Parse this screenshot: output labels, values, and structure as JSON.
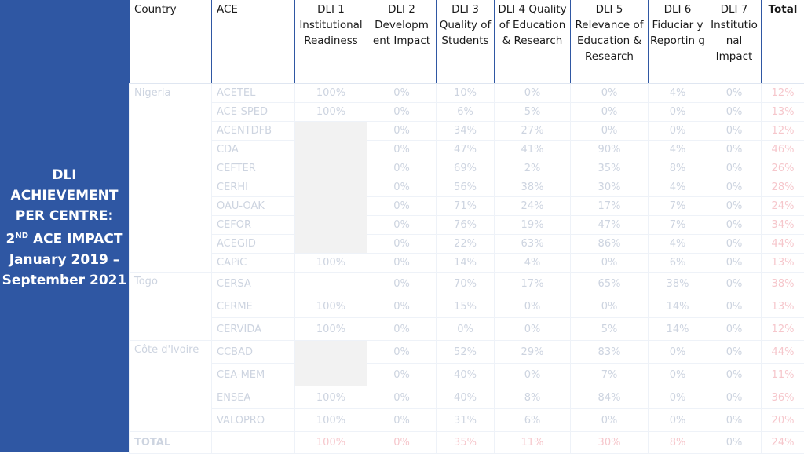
{
  "sidebar": {
    "line1": "DLI",
    "line2": "ACHIEVEMENT",
    "line3": "PER CENTRE:",
    "line4_num": "2",
    "line4_sup": "ND",
    "line4_rest": " ACE IMPACT",
    "line5": "January 2019 –",
    "line6": "September 2021"
  },
  "headers": {
    "country": "Country",
    "ace": "ACE",
    "dli1": "DLI 1 Institutional Readiness",
    "dli2": "DLI 2 Developm ent Impact",
    "dli3": "DLI 3 Quality of Students",
    "dli4": "DLI 4 Quality of Education & Research",
    "dli5": "DLI 5 Relevance of Education & Research",
    "dli6": "DLI 6 Fiduciar y Reportin g",
    "dli7": "DLI 7 Institutio nal Impact",
    "total": "Total"
  },
  "countries": {
    "nigeria": "Nigeria",
    "togo": "Togo",
    "cote": "Côte d'Ivoire"
  },
  "rows": [
    {
      "ace": "ACETEL",
      "d1": "100%",
      "d2": "0%",
      "d3": "10%",
      "d4": "0%",
      "d5": "0%",
      "d6": "4%",
      "d7": "0%",
      "total": "12%"
    },
    {
      "ace": "ACE-SPED",
      "d1": "100%",
      "d2": "0%",
      "d3": "6%",
      "d4": "5%",
      "d5": "0%",
      "d6": "0%",
      "d7": "0%",
      "total": "13%"
    },
    {
      "ace": "ACENTDFB",
      "d1": "",
      "d2": "0%",
      "d3": "34%",
      "d4": "27%",
      "d5": "0%",
      "d6": "0%",
      "d7": "0%",
      "total": "12%"
    },
    {
      "ace": "CDA",
      "d1": "",
      "d2": "0%",
      "d3": "47%",
      "d4": "41%",
      "d5": "90%",
      "d6": "4%",
      "d7": "0%",
      "total": "46%"
    },
    {
      "ace": "CEFTER",
      "d1": "",
      "d2": "0%",
      "d3": "69%",
      "d4": "2%",
      "d5": "35%",
      "d6": "8%",
      "d7": "0%",
      "total": "26%"
    },
    {
      "ace": "CERHI",
      "d1": "",
      "d2": "0%",
      "d3": "56%",
      "d4": "38%",
      "d5": "30%",
      "d6": "4%",
      "d7": "0%",
      "total": "28%"
    },
    {
      "ace": "OAU-OAK",
      "d1": "",
      "d2": "0%",
      "d3": "71%",
      "d4": "24%",
      "d5": "17%",
      "d6": "7%",
      "d7": "0%",
      "total": "24%"
    },
    {
      "ace": "CEFOR",
      "d1": "",
      "d2": "0%",
      "d3": "76%",
      "d4": "19%",
      "d5": "47%",
      "d6": "7%",
      "d7": "0%",
      "total": "34%"
    },
    {
      "ace": "ACEGID",
      "d1": "",
      "d2": "0%",
      "d3": "22%",
      "d4": "63%",
      "d5": "86%",
      "d6": "4%",
      "d7": "0%",
      "total": "44%"
    },
    {
      "ace": "CAPiC",
      "d1": "100%",
      "d2": "0%",
      "d3": "14%",
      "d4": "4%",
      "d5": "0%",
      "d6": "6%",
      "d7": "0%",
      "total": "13%"
    },
    {
      "ace": "CERSA",
      "d1": "",
      "d2": "0%",
      "d3": "70%",
      "d4": "17%",
      "d5": "65%",
      "d6": "38%",
      "d7": "0%",
      "total": "38%"
    },
    {
      "ace": "CERME",
      "d1": "100%",
      "d2": "0%",
      "d3": "15%",
      "d4": "0%",
      "d5": "0%",
      "d6": "14%",
      "d7": "0%",
      "total": "13%"
    },
    {
      "ace": "CERVIDA",
      "d1": "100%",
      "d2": "0%",
      "d3": "0%",
      "d4": "0%",
      "d5": "5%",
      "d6": "14%",
      "d7": "0%",
      "total": "12%"
    },
    {
      "ace": "CCBAD",
      "d1": "",
      "d2": "0%",
      "d3": "52%",
      "d4": "29%",
      "d5": "83%",
      "d6": "0%",
      "d7": "0%",
      "total": "44%"
    },
    {
      "ace": "CEA-MEM",
      "d1": "",
      "d2": "0%",
      "d3": "40%",
      "d4": "0%",
      "d5": "7%",
      "d6": "0%",
      "d7": "0%",
      "total": "11%"
    },
    {
      "ace": "ENSEA",
      "d1": "100%",
      "d2": "0%",
      "d3": "40%",
      "d4": "8%",
      "d5": "84%",
      "d6": "0%",
      "d7": "0%",
      "total": "36%"
    },
    {
      "ace": "VALOPRO",
      "d1": "100%",
      "d2": "0%",
      "d3": "31%",
      "d4": "6%",
      "d5": "0%",
      "d6": "0%",
      "d7": "0%",
      "total": "20%"
    }
  ],
  "total_row": {
    "label": "TOTAL",
    "d1": "100%",
    "d2": "0%",
    "d3": "35%",
    "d4": "11%",
    "d5": "30%",
    "d6": "8%",
    "d7": "0%",
    "total": "24%"
  }
}
